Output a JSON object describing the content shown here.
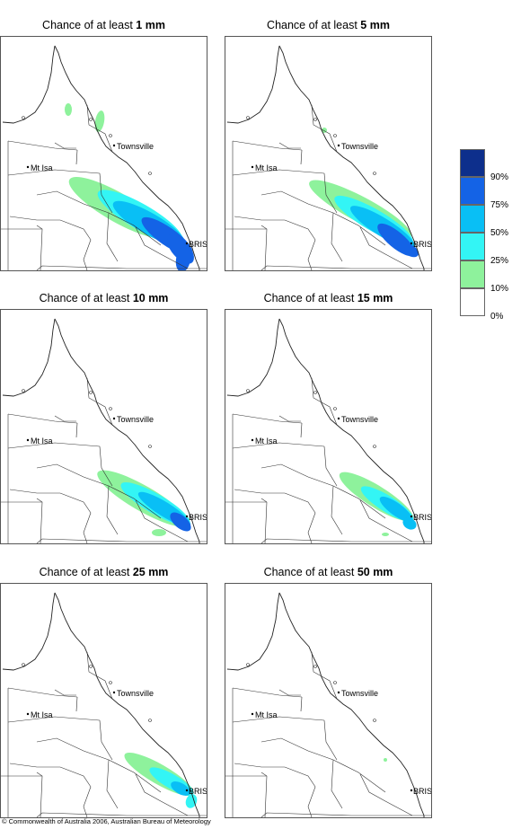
{
  "panels": [
    {
      "prefix": "Chance of at least ",
      "amount": "1 mm",
      "level": 6
    },
    {
      "prefix": "Chance of at least ",
      "amount": "5 mm",
      "level": 5
    },
    {
      "prefix": "Chance of at least ",
      "amount": "10 mm",
      "level": 4
    },
    {
      "prefix": "Chance of at least ",
      "amount": "15 mm",
      "level": 3
    },
    {
      "prefix": "Chance of at least ",
      "amount": "25 mm",
      "level": 2
    },
    {
      "prefix": "Chance of at least ",
      "amount": "50 mm",
      "level": 0
    }
  ],
  "map_labels": {
    "town1": "Townsville",
    "town2": "Mt Isa",
    "city": "BRIS"
  },
  "legend": {
    "labels": [
      "90%",
      "75%",
      "50%",
      "25%",
      "10%",
      "0%"
    ],
    "colors": [
      "#0d2f8c",
      "#1463e6",
      "#09bff5",
      "#33f5f5",
      "#8ef29c",
      "#ffffff"
    ]
  },
  "copyright": "© Commonwealth of Australia 2006, Australian Bureau of Meteorology"
}
